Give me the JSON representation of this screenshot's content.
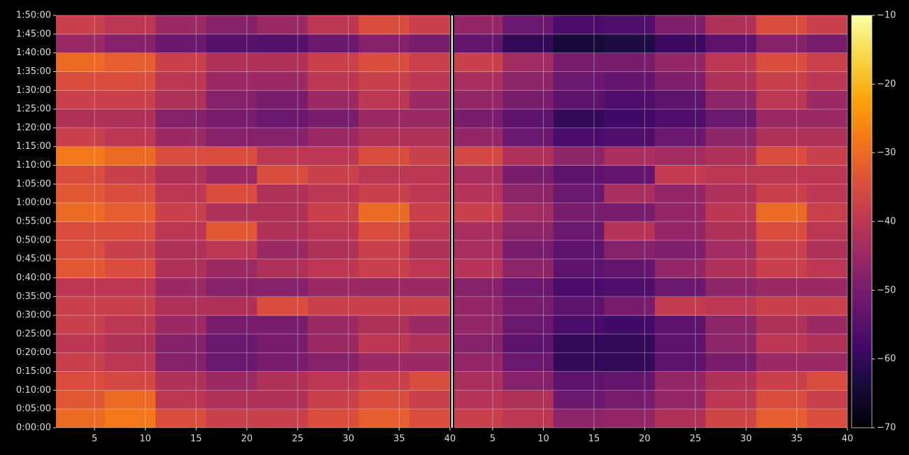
{
  "chart_data": {
    "type": "heatmap",
    "colormap": "inferno",
    "grid": true,
    "clim": [
      -70,
      -10
    ],
    "cticks": [
      {
        "value": -10,
        "label": "−10"
      },
      {
        "value": -20,
        "label": "−20"
      },
      {
        "value": -30,
        "label": "−30"
      },
      {
        "value": -40,
        "label": "−40"
      },
      {
        "value": -50,
        "label": "−50"
      },
      {
        "value": -60,
        "label": "−60"
      },
      {
        "value": -70,
        "label": "−70"
      }
    ],
    "ylim": [
      0,
      110
    ],
    "yticks": [
      {
        "value": 0,
        "label": "0:00:00"
      },
      {
        "value": 5,
        "label": "0:05:00"
      },
      {
        "value": 10,
        "label": "0:10:00"
      },
      {
        "value": 15,
        "label": "0:15:00"
      },
      {
        "value": 20,
        "label": "0:20:00"
      },
      {
        "value": 25,
        "label": "0:25:00"
      },
      {
        "value": 30,
        "label": "0:30:00"
      },
      {
        "value": 35,
        "label": "0:35:00"
      },
      {
        "value": 40,
        "label": "0:40:00"
      },
      {
        "value": 45,
        "label": "0:45:00"
      },
      {
        "value": 50,
        "label": "0:50:00"
      },
      {
        "value": 55,
        "label": "0:55:00"
      },
      {
        "value": 60,
        "label": "1:00:00"
      },
      {
        "value": 65,
        "label": "1:05:00"
      },
      {
        "value": 70,
        "label": "1:10:00"
      },
      {
        "value": 75,
        "label": "1:15:00"
      },
      {
        "value": 80,
        "label": "1:20:00"
      },
      {
        "value": 85,
        "label": "1:25:00"
      },
      {
        "value": 90,
        "label": "1:30:00"
      },
      {
        "value": 95,
        "label": "1:35:00"
      },
      {
        "value": 100,
        "label": "1:40:00"
      },
      {
        "value": 105,
        "label": "1:45:00"
      },
      {
        "value": 110,
        "label": "1:50:00"
      }
    ],
    "y": [
      2.5,
      7.5,
      12.5,
      17.5,
      22.5,
      27.5,
      32.5,
      37.5,
      42.5,
      47.5,
      52.5,
      57.5,
      62.5,
      67.5,
      72.5,
      77.5,
      82.5,
      87.5,
      92.5,
      97.5,
      102.5,
      107.5
    ],
    "panels": [
      {
        "x": [
          3.5,
          8.5,
          13.5,
          18.5,
          23.5,
          28.5,
          33.5,
          38.5
        ],
        "xlim": [
          1.2,
          40
        ],
        "xticks": [
          5,
          10,
          15,
          20,
          25,
          30,
          35,
          40
        ],
        "values": [
          [
            -30,
            -28,
            -35,
            -38,
            -38,
            -35,
            -32,
            -35
          ],
          [
            -33,
            -30,
            -40,
            -42,
            -42,
            -38,
            -35,
            -38
          ],
          [
            -35,
            -36,
            -42,
            -45,
            -42,
            -40,
            -38,
            -35
          ],
          [
            -38,
            -40,
            -48,
            -52,
            -50,
            -48,
            -45,
            -45
          ],
          [
            -40,
            -42,
            -48,
            -52,
            -50,
            -45,
            -40,
            -42
          ],
          [
            -38,
            -40,
            -45,
            -50,
            -50,
            -45,
            -42,
            -45
          ],
          [
            -38,
            -38,
            -42,
            -42,
            -35,
            -38,
            -38,
            -38
          ],
          [
            -40,
            -40,
            -45,
            -48,
            -48,
            -45,
            -45,
            -45
          ],
          [
            -33,
            -35,
            -42,
            -45,
            -42,
            -40,
            -38,
            -40
          ],
          [
            -35,
            -38,
            -42,
            -40,
            -45,
            -42,
            -38,
            -42
          ],
          [
            -35,
            -35,
            -40,
            -33,
            -42,
            -40,
            -35,
            -40
          ],
          [
            -30,
            -32,
            -38,
            -42,
            -42,
            -38,
            -30,
            -38
          ],
          [
            -33,
            -35,
            -40,
            -35,
            -42,
            -40,
            -38,
            -40
          ],
          [
            -35,
            -38,
            -42,
            -45,
            -35,
            -38,
            -40,
            -40
          ],
          [
            -28,
            -30,
            -35,
            -35,
            -40,
            -40,
            -35,
            -38
          ],
          [
            -38,
            -40,
            -45,
            -48,
            -48,
            -45,
            -42,
            -42
          ],
          [
            -42,
            -42,
            -48,
            -50,
            -52,
            -50,
            -45,
            -45
          ],
          [
            -38,
            -38,
            -42,
            -48,
            -50,
            -45,
            -40,
            -45
          ],
          [
            -35,
            -35,
            -40,
            -45,
            -45,
            -40,
            -38,
            -40
          ],
          [
            -30,
            -32,
            -38,
            -42,
            -42,
            -38,
            -35,
            -38
          ],
          [
            -45,
            -48,
            -52,
            -55,
            -55,
            -52,
            -48,
            -50
          ],
          [
            -38,
            -40,
            -45,
            -48,
            -45,
            -40,
            -35,
            -38
          ]
        ]
      },
      {
        "x": [
          3.5,
          8.5,
          13.5,
          18.5,
          23.5,
          28.5,
          33.5,
          38.5
        ],
        "xlim": [
          1.2,
          40
        ],
        "xticks": [
          5,
          10,
          15,
          20,
          25,
          30,
          35,
          40
        ],
        "values": [
          [
            -38,
            -40,
            -47,
            -46,
            -42,
            -37,
            -32,
            -35
          ],
          [
            -41,
            -42,
            -52,
            -50,
            -46,
            -40,
            -35,
            -38
          ],
          [
            -43,
            -48,
            -54,
            -53,
            -46,
            -42,
            -38,
            -35
          ],
          [
            -46,
            -52,
            -60,
            -60,
            -54,
            -50,
            -45,
            -45
          ],
          [
            -48,
            -54,
            -60,
            -60,
            -54,
            -47,
            -40,
            -42
          ],
          [
            -46,
            -52,
            -57,
            -58,
            -54,
            -47,
            -42,
            -45
          ],
          [
            -46,
            -50,
            -54,
            -50,
            -39,
            -40,
            -38,
            -38
          ],
          [
            -48,
            -52,
            -57,
            -56,
            -52,
            -47,
            -45,
            -45
          ],
          [
            -41,
            -47,
            -54,
            -53,
            -46,
            -42,
            -38,
            -40
          ],
          [
            -43,
            -50,
            -54,
            -48,
            -49,
            -44,
            -38,
            -42
          ],
          [
            -43,
            -47,
            -52,
            -41,
            -46,
            -42,
            -35,
            -40
          ],
          [
            -38,
            -44,
            -50,
            -50,
            -46,
            -40,
            -30,
            -38
          ],
          [
            -41,
            -47,
            -52,
            -43,
            -46,
            -42,
            -38,
            -40
          ],
          [
            -43,
            -50,
            -54,
            -53,
            -39,
            -40,
            -40,
            -40
          ],
          [
            -36,
            -42,
            -47,
            -43,
            -44,
            -42,
            -35,
            -38
          ],
          [
            -46,
            -52,
            -57,
            -56,
            -52,
            -47,
            -42,
            -42
          ],
          [
            -50,
            -54,
            -60,
            -58,
            -56,
            -52,
            -45,
            -45
          ],
          [
            -46,
            -50,
            -54,
            -56,
            -54,
            -47,
            -40,
            -45
          ],
          [
            -43,
            -47,
            -52,
            -53,
            -49,
            -42,
            -38,
            -40
          ],
          [
            -38,
            -44,
            -50,
            -50,
            -46,
            -40,
            -35,
            -38
          ],
          [
            -53,
            -60,
            -64,
            -63,
            -59,
            -54,
            -48,
            -50
          ],
          [
            -46,
            -52,
            -57,
            -56,
            -49,
            -42,
            -35,
            -38
          ]
        ]
      }
    ]
  }
}
